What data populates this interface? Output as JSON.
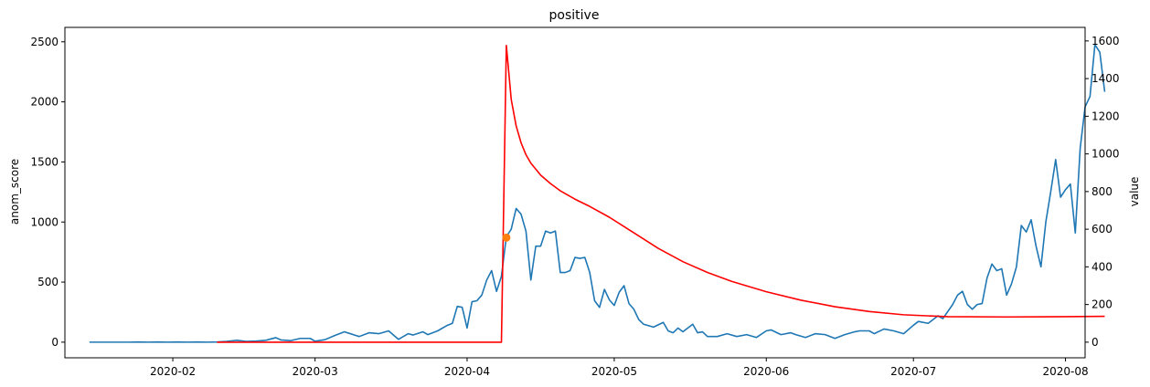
{
  "chart_data": {
    "type": "line",
    "title": "positive",
    "xlabel": "",
    "ylabel_left": "anom_score",
    "ylabel_right": "value",
    "x_ticks": [
      "2020-02",
      "2020-03",
      "2020-04",
      "2020-05",
      "2020-06",
      "2020-07",
      "2020-08"
    ],
    "left_ticks": [
      "0",
      "500",
      "1000",
      "1500",
      "2000",
      "2500"
    ],
    "right_ticks": [
      "0",
      "200",
      "400",
      "600",
      "800",
      "1000",
      "1200",
      "1400",
      "1600"
    ],
    "xlim": [
      "2020-01-10",
      "2020-08-05"
    ],
    "ylim_left": [
      -130,
      2620
    ],
    "ylim_right": [
      -83,
      1672
    ],
    "grid": false,
    "colors": {
      "value": "#1f77b4",
      "anom_score": "#ff0000",
      "marker": "#ff7f0e"
    },
    "series": [
      {
        "axis": "right",
        "color": "#1f77b4",
        "points": [
          [
            "2020-01-15",
            0
          ],
          [
            "2020-01-17",
            0
          ],
          [
            "2020-01-19",
            0
          ],
          [
            "2020-01-21",
            0
          ],
          [
            "2020-01-23",
            0
          ],
          [
            "2020-01-25",
            1
          ],
          [
            "2020-01-27",
            0
          ],
          [
            "2020-01-29",
            1
          ],
          [
            "2020-01-31",
            0
          ],
          [
            "2020-02-02",
            1
          ],
          [
            "2020-02-04",
            0
          ],
          [
            "2020-02-06",
            1
          ],
          [
            "2020-02-08",
            0
          ],
          [
            "2020-02-10",
            1
          ],
          [
            "2020-02-12",
            4
          ],
          [
            "2020-02-14",
            10
          ],
          [
            "2020-02-16",
            4
          ],
          [
            "2020-02-18",
            6
          ],
          [
            "2020-02-20",
            10
          ],
          [
            "2020-02-22",
            24
          ],
          [
            "2020-02-23",
            12
          ],
          [
            "2020-02-25",
            8
          ],
          [
            "2020-02-27",
            20
          ],
          [
            "2020-02-29",
            20
          ],
          [
            "2020-03-01",
            5
          ],
          [
            "2020-03-03",
            13
          ],
          [
            "2020-03-05",
            35
          ],
          [
            "2020-03-07",
            55
          ],
          [
            "2020-03-09",
            38
          ],
          [
            "2020-03-10",
            30
          ],
          [
            "2020-03-12",
            50
          ],
          [
            "2020-03-14",
            45
          ],
          [
            "2020-03-16",
            60
          ],
          [
            "2020-03-18",
            15
          ],
          [
            "2020-03-20",
            45
          ],
          [
            "2020-03-21",
            38
          ],
          [
            "2020-03-23",
            55
          ],
          [
            "2020-03-24",
            40
          ],
          [
            "2020-03-26",
            60
          ],
          [
            "2020-03-28",
            90
          ],
          [
            "2020-03-29",
            100
          ],
          [
            "2020-03-30",
            190
          ],
          [
            "2020-03-31",
            185
          ],
          [
            "2020-04-01",
            75
          ],
          [
            "2020-04-02",
            215
          ],
          [
            "2020-04-03",
            220
          ],
          [
            "2020-04-04",
            250
          ],
          [
            "2020-04-05",
            330
          ],
          [
            "2020-04-06",
            380
          ],
          [
            "2020-04-07",
            270
          ],
          [
            "2020-04-08",
            350
          ],
          [
            "2020-04-09",
            560
          ],
          [
            "2020-04-10",
            600
          ],
          [
            "2020-04-11",
            710
          ],
          [
            "2020-04-12",
            680
          ],
          [
            "2020-04-13",
            590
          ],
          [
            "2020-04-14",
            330
          ],
          [
            "2020-04-15",
            510
          ],
          [
            "2020-04-16",
            510
          ],
          [
            "2020-04-17",
            590
          ],
          [
            "2020-04-18",
            580
          ],
          [
            "2020-04-19",
            590
          ],
          [
            "2020-04-20",
            370
          ],
          [
            "2020-04-21",
            370
          ],
          [
            "2020-04-22",
            380
          ],
          [
            "2020-04-23",
            450
          ],
          [
            "2020-04-24",
            445
          ],
          [
            "2020-04-25",
            450
          ],
          [
            "2020-04-26",
            370
          ],
          [
            "2020-04-27",
            220
          ],
          [
            "2020-04-28",
            185
          ],
          [
            "2020-04-29",
            280
          ],
          [
            "2020-04-30",
            225
          ],
          [
            "2020-05-01",
            195
          ],
          [
            "2020-05-02",
            265
          ],
          [
            "2020-05-03",
            300
          ],
          [
            "2020-05-04",
            205
          ],
          [
            "2020-05-05",
            175
          ],
          [
            "2020-05-06",
            120
          ],
          [
            "2020-05-07",
            95
          ],
          [
            "2020-05-09",
            80
          ],
          [
            "2020-05-11",
            105
          ],
          [
            "2020-05-12",
            60
          ],
          [
            "2020-05-13",
            50
          ],
          [
            "2020-05-14",
            75
          ],
          [
            "2020-05-15",
            55
          ],
          [
            "2020-05-17",
            95
          ],
          [
            "2020-05-18",
            50
          ],
          [
            "2020-05-19",
            55
          ],
          [
            "2020-05-20",
            30
          ],
          [
            "2020-05-22",
            30
          ],
          [
            "2020-05-24",
            45
          ],
          [
            "2020-05-26",
            30
          ],
          [
            "2020-05-28",
            40
          ],
          [
            "2020-05-30",
            25
          ],
          [
            "2020-06-01",
            60
          ],
          [
            "2020-06-02",
            65
          ],
          [
            "2020-06-04",
            40
          ],
          [
            "2020-06-06",
            50
          ],
          [
            "2020-06-07",
            40
          ],
          [
            "2020-06-09",
            25
          ],
          [
            "2020-06-11",
            45
          ],
          [
            "2020-06-13",
            40
          ],
          [
            "2020-06-15",
            20
          ],
          [
            "2020-06-17",
            40
          ],
          [
            "2020-06-19",
            55
          ],
          [
            "2020-06-20",
            60
          ],
          [
            "2020-06-22",
            60
          ],
          [
            "2020-06-23",
            45
          ],
          [
            "2020-06-25",
            70
          ],
          [
            "2020-06-27",
            60
          ],
          [
            "2020-06-29",
            45
          ],
          [
            "2020-07-01",
            90
          ],
          [
            "2020-07-02",
            110
          ],
          [
            "2020-07-04",
            100
          ],
          [
            "2020-07-06",
            140
          ],
          [
            "2020-07-07",
            125
          ],
          [
            "2020-07-09",
            200
          ],
          [
            "2020-07-10",
            250
          ],
          [
            "2020-07-11",
            270
          ],
          [
            "2020-07-12",
            200
          ],
          [
            "2020-07-13",
            175
          ],
          [
            "2020-07-14",
            200
          ],
          [
            "2020-07-15",
            205
          ],
          [
            "2020-07-16",
            340
          ],
          [
            "2020-07-17",
            415
          ],
          [
            "2020-07-18",
            380
          ],
          [
            "2020-07-19",
            390
          ],
          [
            "2020-07-20",
            250
          ],
          [
            "2020-07-21",
            310
          ],
          [
            "2020-07-22",
            400
          ],
          [
            "2020-07-23",
            620
          ],
          [
            "2020-07-24",
            585
          ],
          [
            "2020-07-25",
            650
          ],
          [
            "2020-07-26",
            510
          ],
          [
            "2020-07-27",
            400
          ],
          [
            "2020-07-28",
            640
          ],
          [
            "2020-07-29",
            800
          ],
          [
            "2020-07-30",
            970
          ],
          [
            "2020-07-31",
            770
          ],
          [
            "2020-08-01",
            810
          ],
          [
            "2020-08-02",
            840
          ],
          [
            "2020-08-03",
            580
          ],
          [
            "2020-08-04",
            1030
          ],
          [
            "2020-08-05",
            1250
          ],
          [
            "2020-08-06",
            1305
          ],
          [
            "2020-08-07",
            1580
          ],
          [
            "2020-08-08",
            1540
          ],
          [
            "2020-08-09",
            1330
          ]
        ]
      },
      {
        "axis": "left",
        "color": "#ff0000",
        "points": [
          [
            "2020-02-10",
            0
          ],
          [
            "2020-04-08",
            0
          ],
          [
            "2020-04-09",
            2470
          ],
          [
            "2020-04-10",
            2020
          ],
          [
            "2020-04-11",
            1800
          ],
          [
            "2020-04-12",
            1660
          ],
          [
            "2020-04-13",
            1560
          ],
          [
            "2020-04-14",
            1490
          ],
          [
            "2020-04-16",
            1390
          ],
          [
            "2020-04-18",
            1320
          ],
          [
            "2020-04-20",
            1260
          ],
          [
            "2020-04-23",
            1190
          ],
          [
            "2020-04-26",
            1130
          ],
          [
            "2020-04-30",
            1040
          ],
          [
            "2020-05-05",
            910
          ],
          [
            "2020-05-10",
            780
          ],
          [
            "2020-05-15",
            670
          ],
          [
            "2020-05-20",
            580
          ],
          [
            "2020-05-25",
            505
          ],
          [
            "2020-06-01",
            420
          ],
          [
            "2020-06-08",
            350
          ],
          [
            "2020-06-15",
            295
          ],
          [
            "2020-06-22",
            255
          ],
          [
            "2020-06-29",
            228
          ],
          [
            "2020-07-08",
            212
          ],
          [
            "2020-07-20",
            210
          ],
          [
            "2020-08-01",
            212
          ],
          [
            "2020-08-09",
            215
          ]
        ]
      }
    ],
    "marker": {
      "axis": "left",
      "x": "2020-04-09",
      "y": 870,
      "color": "#ff7f0e"
    }
  }
}
